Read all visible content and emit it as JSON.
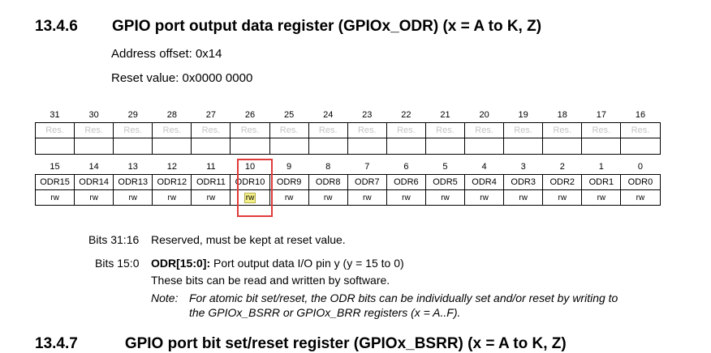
{
  "section": {
    "number": "13.4.6",
    "title": "GPIO port output data register (GPIOx_ODR) (x = A to K, Z)",
    "address_offset": "Address offset: 0x14",
    "reset_value": "Reset value: 0x0000 0000"
  },
  "upper_half": {
    "bits": [
      "31",
      "30",
      "29",
      "28",
      "27",
      "26",
      "25",
      "24",
      "23",
      "22",
      "21",
      "20",
      "19",
      "18",
      "17",
      "16"
    ],
    "fields": [
      "Res.",
      "Res.",
      "Res.",
      "Res.",
      "Res.",
      "Res.",
      "Res.",
      "Res.",
      "Res.",
      "Res.",
      "Res.",
      "Res.",
      "Res.",
      "Res.",
      "Res.",
      "Res."
    ]
  },
  "lower_half": {
    "bits": [
      "15",
      "14",
      "13",
      "12",
      "11",
      "10",
      "9",
      "8",
      "7",
      "6",
      "5",
      "4",
      "3",
      "2",
      "1",
      "0"
    ],
    "fields": [
      "ODR15",
      "ODR14",
      "ODR13",
      "ODR12",
      "ODR11",
      "ODR10",
      "ODR9",
      "ODR8",
      "ODR7",
      "ODR6",
      "ODR5",
      "ODR4",
      "ODR3",
      "ODR2",
      "ODR1",
      "ODR0"
    ],
    "access": [
      "rw",
      "rw",
      "rw",
      "rw",
      "rw",
      "rw",
      "rw",
      "rw",
      "rw",
      "rw",
      "rw",
      "rw",
      "rw",
      "rw",
      "rw",
      "rw"
    ]
  },
  "highlight": {
    "bit": "10",
    "color": "#e03c3c",
    "access_highlight_color": "#f6f28a"
  },
  "descriptions": {
    "bits_31_16_label": "Bits 31:16",
    "bits_31_16_text": "Reserved, must be kept at reset value.",
    "bits_15_0_label": "Bits 15:0",
    "bits_15_0_field": "ODR[15:0]:",
    "bits_15_0_text": " Port output data I/O pin y (y = 15 to 0)",
    "bits_15_0_line2": "These bits can be read and written by software.",
    "note_label": "Note:",
    "note_line1": "For atomic bit set/reset, the ODR bits can be individually set and/or reset by writing to",
    "note_line2": "the GPIOx_BSRR or GPIOx_BRR registers (x = A..F)."
  },
  "next_section": {
    "number": "13.4.7",
    "title": "GPIO port bit set/reset register (GPIOx_BSRR) (x = A to K, Z)"
  }
}
